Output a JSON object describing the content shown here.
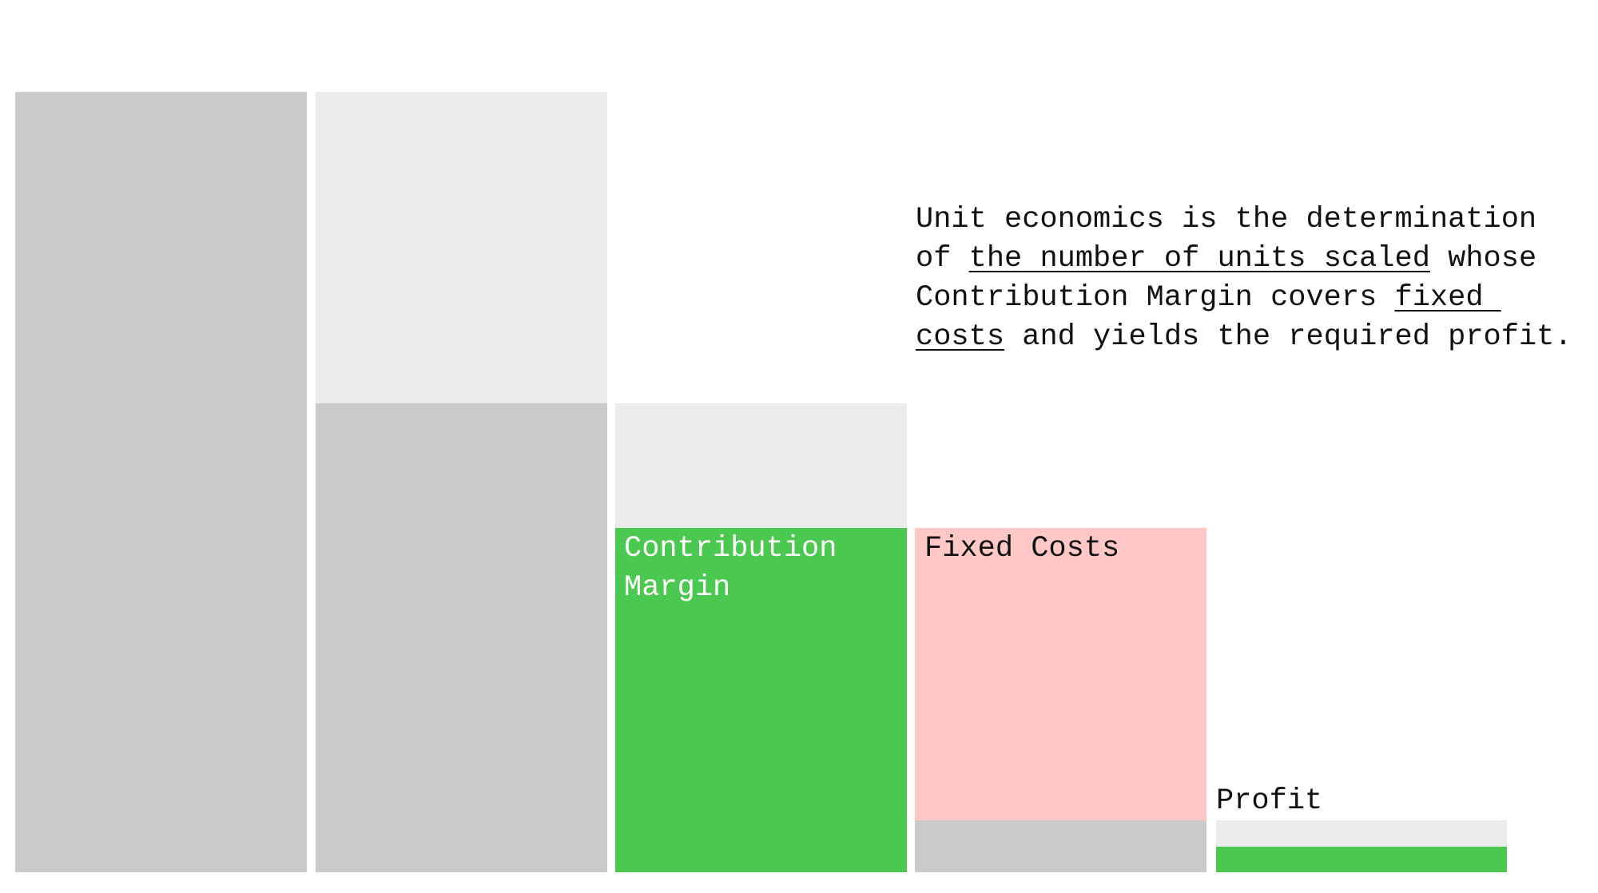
{
  "labels": {
    "contribution_margin": "Contribution\nMargin",
    "fixed_costs": "Fixed Costs",
    "profit": "Profit"
  },
  "description": {
    "lines": [
      [
        "Unit economics is the determination"
      ],
      [
        "of ",
        {
          "text": "the number of units scaled"
        },
        " whose"
      ],
      [
        "Contribution Margin covers ",
        {
          "text": "fixed "
        }
      ],
      [
        {
          "text": "costs"
        },
        " and yields the required profit."
      ]
    ]
  }
}
